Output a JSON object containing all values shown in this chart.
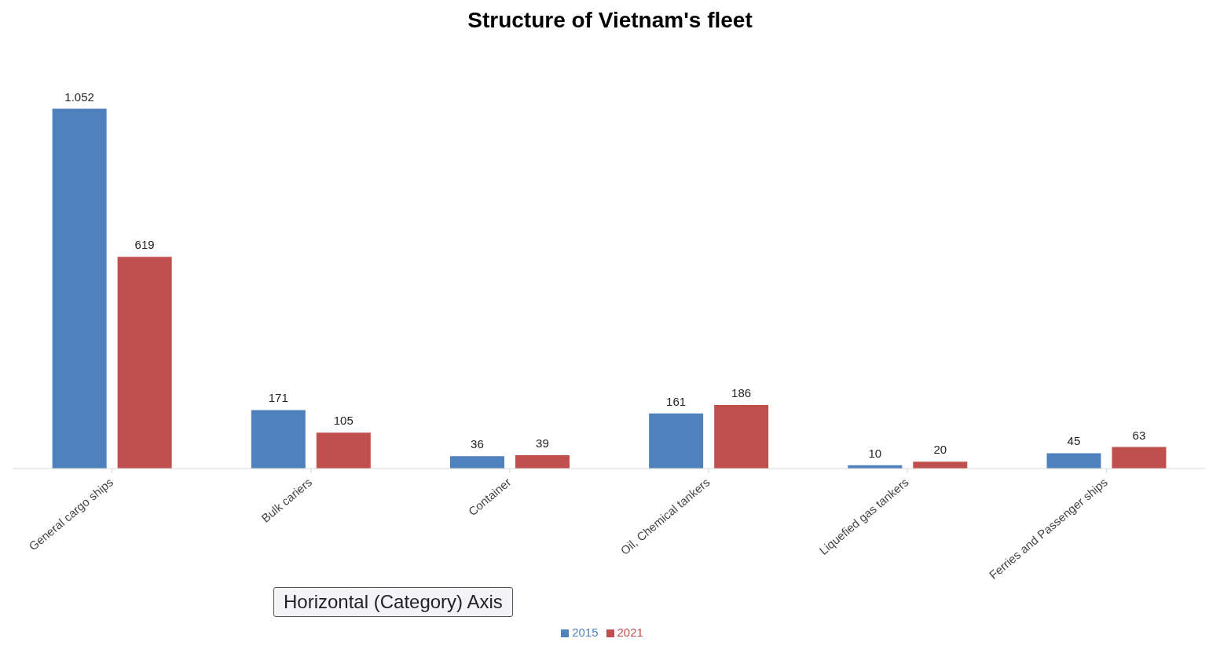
{
  "chart_data": {
    "type": "bar",
    "title": "Structure of Vietnam's fleet",
    "categories": [
      "General cargo ships",
      "Bulk cariers",
      "Container",
      "Oil, Chemical tankers",
      "Liquefied gas tankers",
      "Ferries and Passenger ships"
    ],
    "series": [
      {
        "name": "2015",
        "color": "#4f81bd",
        "values": [
          1052,
          171,
          36,
          161,
          10,
          45
        ],
        "value_labels": [
          "1.052",
          "171",
          "36",
          "161",
          "10",
          "45"
        ]
      },
      {
        "name": "2021",
        "color": "#c0504d",
        "values": [
          619,
          105,
          39,
          186,
          20,
          63
        ],
        "value_labels": [
          "619",
          "105",
          "39",
          "186",
          "20",
          "63"
        ]
      }
    ],
    "tick_labels": "x",
    "legend": "bottom",
    "annotations": [
      "Horizontal (Category) Axis"
    ]
  }
}
